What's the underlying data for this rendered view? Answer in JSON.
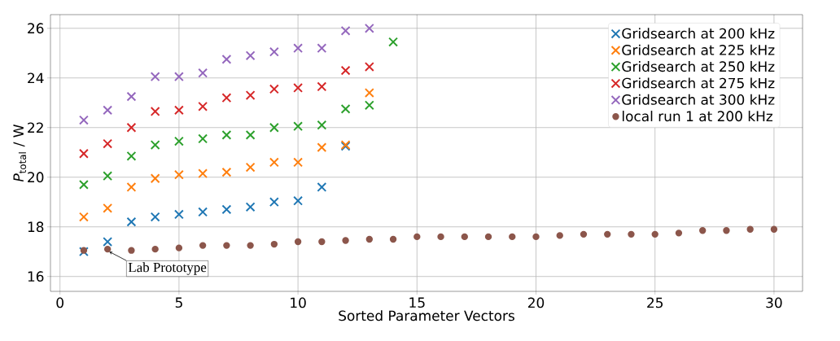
{
  "chart_data": {
    "type": "scatter",
    "xlabel": "Sorted Parameter Vectors",
    "ylabel": "*P*$_{total}$ / W",
    "xlim": [
      -0.4,
      31.2
    ],
    "ylim": [
      15.4,
      26.55
    ],
    "xticks": [
      0,
      5,
      10,
      15,
      20,
      25,
      30
    ],
    "yticks": [
      16,
      18,
      20,
      22,
      24,
      26
    ],
    "grid": true,
    "legend": "top right",
    "series": [
      {
        "name": "Gridsearch at 200 kHz",
        "color": "#1f77b4",
        "marker": "cross",
        "x": [
          1,
          2,
          3,
          4,
          5,
          6,
          7,
          8,
          9,
          10,
          11,
          12
        ],
        "values": [
          17.0,
          17.4,
          18.2,
          18.4,
          18.5,
          18.6,
          18.7,
          18.8,
          19.0,
          19.05,
          19.6,
          21.25
        ]
      },
      {
        "name": "Gridsearch at 225 kHz",
        "color": "#ff7f0e",
        "marker": "cross",
        "x": [
          1,
          2,
          3,
          4,
          5,
          6,
          7,
          8,
          9,
          10,
          11,
          12,
          13
        ],
        "values": [
          18.4,
          18.75,
          19.6,
          19.95,
          20.1,
          20.15,
          20.2,
          20.4,
          20.6,
          20.6,
          21.2,
          21.3,
          23.4
        ]
      },
      {
        "name": "Gridsearch at 250 kHz",
        "color": "#2ca02c",
        "marker": "cross",
        "x": [
          1,
          2,
          3,
          4,
          5,
          6,
          7,
          8,
          9,
          10,
          11,
          12,
          13,
          14
        ],
        "values": [
          19.7,
          20.05,
          20.85,
          21.3,
          21.45,
          21.55,
          21.7,
          21.7,
          22.0,
          22.05,
          22.1,
          22.75,
          22.9,
          25.45
        ]
      },
      {
        "name": "Gridsearch at 275 kHz",
        "color": "#d62728",
        "marker": "cross",
        "x": [
          1,
          2,
          3,
          4,
          5,
          6,
          7,
          8,
          9,
          10,
          11,
          12,
          13
        ],
        "values": [
          20.95,
          21.35,
          22.0,
          22.65,
          22.7,
          22.85,
          23.2,
          23.3,
          23.55,
          23.6,
          23.65,
          24.3,
          24.45
        ]
      },
      {
        "name": "Gridsearch at 300 kHz",
        "color": "#9467bd",
        "marker": "cross",
        "x": [
          1,
          2,
          3,
          4,
          5,
          6,
          7,
          8,
          9,
          10,
          11,
          12,
          13
        ],
        "values": [
          22.3,
          22.7,
          23.25,
          24.05,
          24.05,
          24.2,
          24.75,
          24.9,
          25.05,
          25.2,
          25.2,
          25.9,
          26.0
        ]
      },
      {
        "name": "local run 1 at 200 kHz",
        "color": "#8c564b",
        "marker": "circle",
        "x": [
          1,
          2,
          3,
          4,
          5,
          6,
          7,
          8,
          9,
          10,
          11,
          12,
          13,
          14,
          15,
          16,
          17,
          18,
          19,
          20,
          21,
          22,
          23,
          24,
          25,
          26,
          27,
          28,
          29,
          30
        ],
        "values": [
          17.05,
          17.1,
          17.05,
          17.1,
          17.15,
          17.25,
          17.25,
          17.25,
          17.3,
          17.4,
          17.4,
          17.45,
          17.5,
          17.5,
          17.6,
          17.6,
          17.6,
          17.6,
          17.6,
          17.6,
          17.65,
          17.7,
          17.7,
          17.7,
          17.7,
          17.75,
          17.85,
          17.85,
          17.9,
          17.9
        ]
      }
    ],
    "annotations": [
      {
        "text": "Lab Prototype",
        "x": 2,
        "y": 17.1
      }
    ]
  }
}
